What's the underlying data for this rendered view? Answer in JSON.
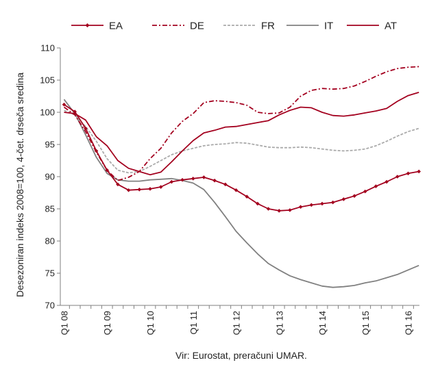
{
  "chart_data": {
    "type": "line",
    "ylabel": "Desezoniran indeks 2008=100, 4-čet. drseča sredina",
    "source": "Vir: Eurostat, preračuni UMAR.",
    "ylim": [
      70,
      110
    ],
    "yticks": [
      "70",
      "75",
      "80",
      "85",
      "90",
      "95",
      "100",
      "105",
      "110"
    ],
    "xtick_labels": [
      "Q1 08",
      "Q1 09",
      "Q1 10",
      "Q1 11",
      "Q1 12",
      "Q1 13",
      "Q1 14",
      "Q1 15",
      "Q1 16"
    ],
    "grid": false,
    "legend": "top",
    "series": [
      {
        "name": "EA",
        "color": "#a3001e",
        "style": "solid-markers",
        "values": [
          101.2,
          100.1,
          97.5,
          94.0,
          91.0,
          88.8,
          87.9,
          88.0,
          88.1,
          88.4,
          89.2,
          89.5,
          89.7,
          89.9,
          89.4,
          88.8,
          87.9,
          86.9,
          85.8,
          85.0,
          84.7,
          84.8,
          85.3,
          85.6,
          85.8,
          86.0,
          86.5,
          87.0,
          87.7,
          88.5,
          89.2,
          90.0,
          90.5,
          90.8
        ]
      },
      {
        "name": "DE",
        "color": "#a3001e",
        "style": "dash-dot",
        "values": [
          100.8,
          99.6,
          97.0,
          93.8,
          91.0,
          89.4,
          89.9,
          90.8,
          92.8,
          94.4,
          96.8,
          98.6,
          99.8,
          101.5,
          101.8,
          101.7,
          101.5,
          101.1,
          100.0,
          99.8,
          99.9,
          100.8,
          102.5,
          103.4,
          103.7,
          103.6,
          103.7,
          104.1,
          104.8,
          105.6,
          106.3,
          106.8,
          107.0,
          107.1
        ]
      },
      {
        "name": "FR",
        "color": "#aaaaaa",
        "style": "dashed",
        "values": [
          100.3,
          99.6,
          97.8,
          95.5,
          92.8,
          91.0,
          90.6,
          90.8,
          91.6,
          92.5,
          93.4,
          94.0,
          94.4,
          94.8,
          95.0,
          95.1,
          95.3,
          95.2,
          94.9,
          94.6,
          94.5,
          94.5,
          94.6,
          94.5,
          94.3,
          94.1,
          94.0,
          94.1,
          94.3,
          94.8,
          95.5,
          96.3,
          97.0,
          97.5
        ]
      },
      {
        "name": "IT",
        "color": "#808080",
        "style": "solid",
        "values": [
          102.0,
          99.8,
          96.5,
          93.0,
          90.5,
          89.5,
          89.3,
          89.3,
          89.5,
          89.6,
          89.7,
          89.4,
          89.0,
          88.0,
          86.0,
          83.8,
          81.5,
          79.7,
          78.0,
          76.5,
          75.5,
          74.6,
          74.0,
          73.5,
          73.0,
          72.8,
          72.9,
          73.1,
          73.5,
          73.8,
          74.3,
          74.8,
          75.5,
          76.2
        ]
      },
      {
        "name": "AT",
        "color": "#a3001e",
        "style": "solid",
        "values": [
          100.0,
          99.8,
          98.8,
          96.2,
          94.8,
          92.5,
          91.3,
          90.8,
          90.3,
          90.7,
          92.3,
          94.0,
          95.6,
          96.8,
          97.2,
          97.7,
          97.8,
          98.1,
          98.4,
          98.7,
          99.6,
          100.3,
          100.8,
          100.7,
          100.0,
          99.5,
          99.4,
          99.6,
          99.9,
          100.2,
          100.6,
          101.7,
          102.6,
          103.1
        ]
      }
    ]
  }
}
